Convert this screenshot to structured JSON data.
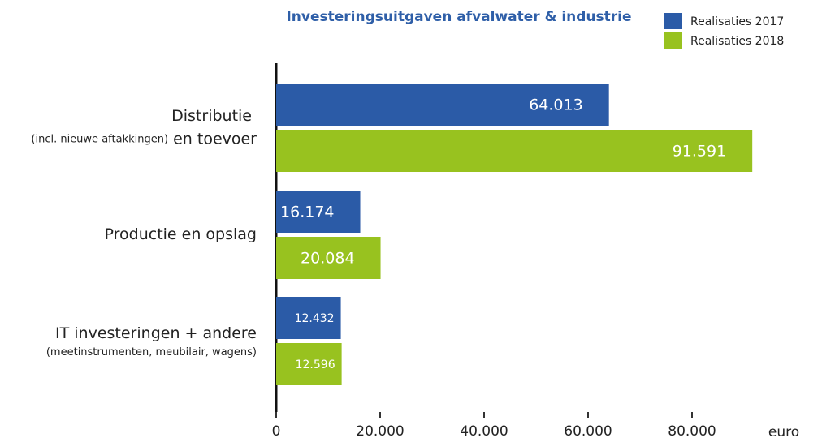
{
  "chart_data": {
    "type": "bar",
    "orientation": "horizontal",
    "title": "Investeringsuitgaven afvalwater & industrie",
    "categories": [
      [
        "Distributie",
        "(incl. nieuwe aftakkingen)",
        "en toevoer"
      ],
      [
        "Productie en opslag"
      ],
      [
        "IT investeringen + andere",
        "(meetinstrumenten, meubilair, wagens)"
      ]
    ],
    "series": [
      {
        "name": "Realisaties 2017",
        "color": "#2b5ba7",
        "values": [
          64013,
          16174,
          12432
        ],
        "value_labels": [
          "64.013",
          "16.174",
          "12.432"
        ]
      },
      {
        "name": "Realisaties 2018",
        "color": "#98c21f",
        "values": [
          91591,
          20084,
          12596
        ],
        "value_labels": [
          "91.591",
          "20.084",
          "12.596"
        ]
      }
    ],
    "xlabel": "euro",
    "xlim": [
      0,
      100000
    ],
    "xticks": [
      0,
      {
        "value": 20000,
        "label": "20.000"
      },
      {
        "value": 40000,
        "label": "40.000"
      },
      {
        "value": 60000,
        "label": "60.000"
      },
      {
        "value": 80000,
        "label": "80.000"
      }
    ],
    "legend": "top-right"
  }
}
